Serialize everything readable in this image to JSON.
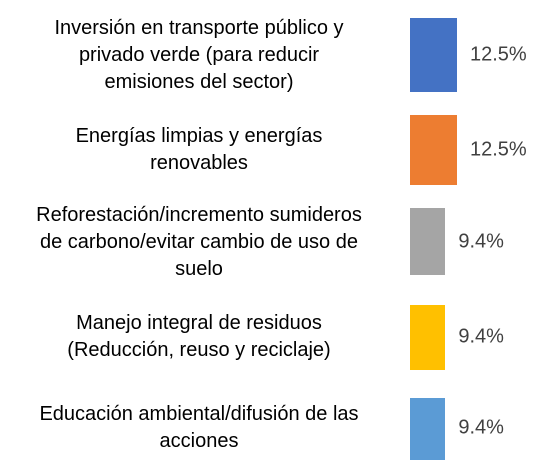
{
  "chart_data": {
    "type": "bar",
    "categories": [
      "Inversión en transporte público y\nprivado verde (para reducir\nemisiones del sector)",
      "Energías limpias y energías\nrenovables",
      "Reforestación/incremento sumideros\nde carbono/evitar cambio de uso de\nsuelo",
      "Manejo integral de residuos\n(Reducción, reuso y reciclaje)",
      "Educación ambiental/difusión de las\nacciones"
    ],
    "values": [
      12.5,
      12.5,
      9.4,
      9.4,
      9.4
    ],
    "value_labels": [
      "12.5%",
      "12.5%",
      "9.4%",
      "9.4%",
      "9.4%"
    ],
    "colors": [
      "#4472c4",
      "#ed7d31",
      "#a5a5a5",
      "#ffc000",
      "#5b9bd5"
    ]
  }
}
